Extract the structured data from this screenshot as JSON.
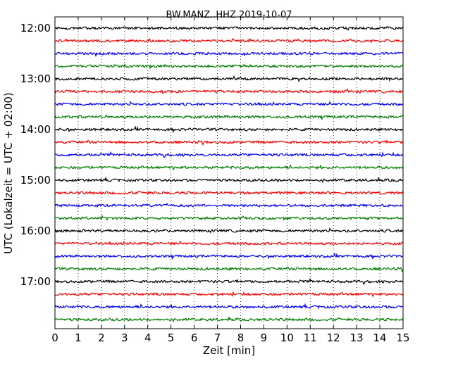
{
  "chart_data": {
    "type": "line",
    "title": "BW.MANZ..HHZ 2019-10-07",
    "xlabel": "Zeit  [min]",
    "ylabel": "UTC (Lokalzeit = UTC + 02:00)",
    "xlim": [
      0,
      15
    ],
    "x_ticks": [
      "0",
      "1",
      "2",
      "3",
      "4",
      "5",
      "6",
      "7",
      "8",
      "9",
      "10",
      "11",
      "12",
      "13",
      "14",
      "15"
    ],
    "y_ticks": [
      "12:00",
      "13:00",
      "14:00",
      "15:00",
      "16:00",
      "17:00"
    ],
    "grid": "vertical-dotted",
    "trace_colors": [
      "#000000",
      "#ff0000",
      "#0000ff",
      "#007f00"
    ],
    "traces": [
      {
        "start": "12:00"
      },
      {
        "start": "12:15"
      },
      {
        "start": "12:30"
      },
      {
        "start": "12:45"
      },
      {
        "start": "13:00"
      },
      {
        "start": "13:15"
      },
      {
        "start": "13:30"
      },
      {
        "start": "13:45"
      },
      {
        "start": "14:00"
      },
      {
        "start": "14:15"
      },
      {
        "start": "14:30"
      },
      {
        "start": "14:45"
      },
      {
        "start": "15:00"
      },
      {
        "start": "15:15"
      },
      {
        "start": "15:30"
      },
      {
        "start": "15:45"
      },
      {
        "start": "16:00"
      },
      {
        "start": "16:15"
      },
      {
        "start": "16:30"
      },
      {
        "start": "16:45"
      },
      {
        "start": "17:00"
      },
      {
        "start": "17:15"
      },
      {
        "start": "17:30"
      },
      {
        "start": "17:45"
      }
    ]
  }
}
